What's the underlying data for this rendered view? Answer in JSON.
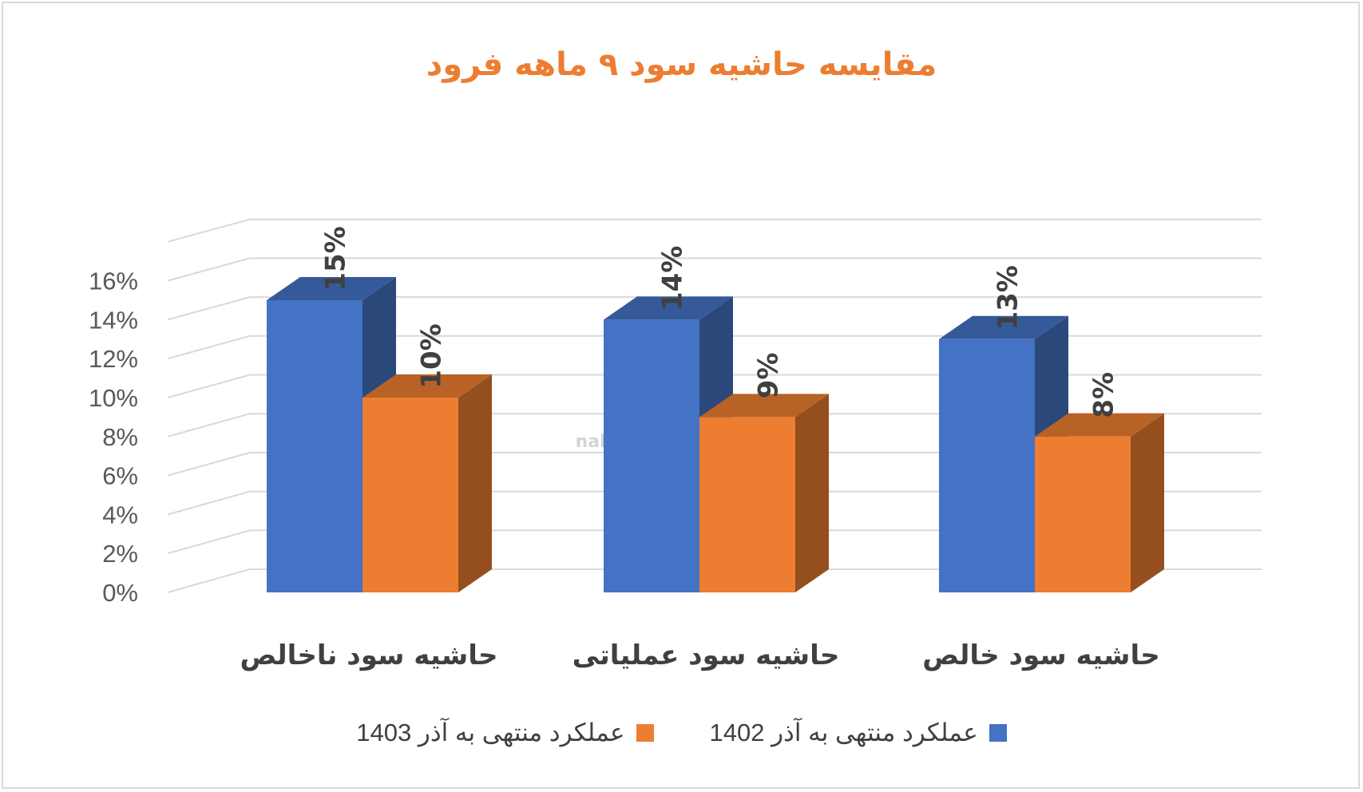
{
  "chart_data": {
    "type": "bar",
    "title": "مقایسه حاشیه سود ۹ ماهه فرود",
    "categories": [
      "حاشیه سود ناخالص",
      "حاشیه سود عملیاتی",
      "حاشیه سود خالص"
    ],
    "series": [
      {
        "name": "عملکرد منتهی به آذر 1402",
        "values": [
          15,
          14,
          13
        ],
        "labels": [
          "15%",
          "14%",
          "13%"
        ],
        "color": "#4472c4"
      },
      {
        "name": "عملکرد منتهی به آذر 1403",
        "values": [
          10,
          9,
          8
        ],
        "labels": [
          "10%",
          "9%",
          "8%"
        ],
        "color": "#ed7d31"
      }
    ],
    "ylim": [
      0,
      16
    ],
    "yticks": [
      "0%",
      "2%",
      "4%",
      "6%",
      "8%",
      "10%",
      "12%",
      "14%",
      "16%"
    ],
    "grid": true,
    "legend_position": "bottom",
    "watermark": "nabzebourse.com"
  }
}
